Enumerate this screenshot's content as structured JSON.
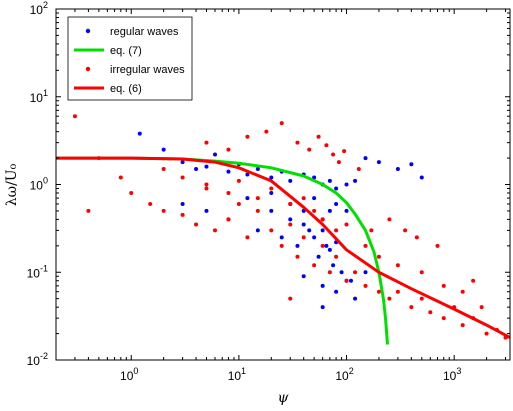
{
  "chart_data": {
    "type": "scatter",
    "title": "",
    "xlabel": "ψ",
    "ylabel": "λω/U₀",
    "xscale": "log",
    "yscale": "log",
    "xlim": [
      0.2,
      3300
    ],
    "ylim": [
      0.01,
      100
    ],
    "grid": false,
    "legend_position": "top-left",
    "x_ticks": [
      {
        "value": 1,
        "base": "10",
        "exp": "0"
      },
      {
        "value": 10,
        "base": "10",
        "exp": "1"
      },
      {
        "value": 100,
        "base": "10",
        "exp": "2"
      },
      {
        "value": 1000,
        "base": "10",
        "exp": "3"
      }
    ],
    "y_ticks": [
      {
        "value": 0.01,
        "base": "10",
        "exp": "-2"
      },
      {
        "value": 0.1,
        "base": "10",
        "exp": "-1"
      },
      {
        "value": 1,
        "base": "10",
        "exp": "0"
      },
      {
        "value": 10,
        "base": "10",
        "exp": "1"
      },
      {
        "value": 100,
        "base": "10",
        "exp": "2"
      }
    ],
    "series": [
      {
        "name": "regular waves",
        "kind": "points",
        "color": "#0000ff",
        "x": [
          1.2,
          2,
          3,
          4,
          5,
          6,
          8,
          10,
          12,
          15,
          20,
          25,
          30,
          40,
          50,
          60,
          70,
          80,
          100,
          120,
          150,
          200,
          300,
          400,
          500,
          3,
          5,
          8,
          12,
          20,
          30,
          40,
          50,
          60,
          70,
          80,
          100,
          15,
          25,
          35,
          45,
          55,
          65,
          75,
          90,
          110,
          20,
          30,
          40,
          50,
          60,
          70,
          80,
          40,
          60,
          80,
          100,
          120,
          150,
          60
        ],
        "y": [
          3.8,
          2.5,
          1.8,
          1.5,
          1.6,
          2.2,
          1.4,
          1.7,
          1.3,
          1.5,
          1.2,
          1.4,
          1.1,
          1.3,
          1.2,
          1.0,
          1.1,
          0.9,
          1.0,
          1.1,
          2.0,
          1.8,
          1.5,
          1.7,
          1.2,
          0.6,
          0.5,
          0.4,
          0.7,
          0.8,
          0.6,
          0.5,
          0.7,
          0.4,
          0.5,
          0.6,
          0.5,
          0.3,
          0.25,
          0.2,
          0.3,
          0.15,
          0.2,
          0.12,
          0.1,
          0.08,
          0.5,
          0.4,
          0.35,
          0.25,
          0.3,
          0.18,
          0.22,
          0.09,
          0.07,
          0.06,
          0.08,
          0.05,
          0.1,
          0.04
        ]
      },
      {
        "name": "eq. (7)",
        "kind": "line",
        "color": "#00e000",
        "x": [
          0.2,
          1,
          3,
          6,
          10,
          20,
          40,
          60,
          80,
          100,
          120,
          150,
          180,
          200,
          220,
          230,
          240
        ],
        "y": [
          2.0,
          2.0,
          1.95,
          1.85,
          1.75,
          1.55,
          1.25,
          1.0,
          0.8,
          0.62,
          0.46,
          0.3,
          0.17,
          0.1,
          0.05,
          0.03,
          0.015
        ]
      },
      {
        "name": "irregular waves",
        "kind": "points",
        "color": "#ff0000",
        "x": [
          0.3,
          0.4,
          0.5,
          0.8,
          1,
          1.5,
          2,
          3,
          4,
          5,
          6,
          8,
          10,
          12,
          15,
          20,
          25,
          30,
          35,
          40,
          50,
          60,
          70,
          80,
          100,
          120,
          150,
          200,
          250,
          300,
          400,
          500,
          600,
          800,
          1000,
          1200,
          1500,
          2000,
          2500,
          3000,
          2,
          3,
          5,
          8,
          10,
          15,
          20,
          30,
          40,
          50,
          60,
          80,
          100,
          150,
          200,
          300,
          500,
          800,
          1200,
          1800,
          5,
          8,
          12,
          18,
          25,
          35,
          45,
          55,
          65,
          75,
          85,
          95,
          130,
          170,
          250,
          350,
          450,
          700,
          1500,
          30
        ],
        "y": [
          6.0,
          0.5,
          2.0,
          1.2,
          0.8,
          0.6,
          0.5,
          0.45,
          0.35,
          1.0,
          0.3,
          0.4,
          0.6,
          0.25,
          0.5,
          0.3,
          0.2,
          0.35,
          0.15,
          0.25,
          0.12,
          0.2,
          0.1,
          0.15,
          0.08,
          0.1,
          0.07,
          0.06,
          0.05,
          0.06,
          0.04,
          0.05,
          0.035,
          0.03,
          0.04,
          0.025,
          0.03,
          0.02,
          0.022,
          0.018,
          1.5,
          1.2,
          0.9,
          0.8,
          1.1,
          0.7,
          0.9,
          0.6,
          0.7,
          0.5,
          0.4,
          0.3,
          0.35,
          0.2,
          0.15,
          0.12,
          0.1,
          0.07,
          0.06,
          0.04,
          3.0,
          2.5,
          3.5,
          4.0,
          5.0,
          3.0,
          2.5,
          3.5,
          2.8,
          2.2,
          1.8,
          2.4,
          1.5,
          0.3,
          0.4,
          0.3,
          0.25,
          0.2,
          0.08,
          0.05
        ]
      },
      {
        "name": "eq. (6)",
        "kind": "line",
        "color": "#ff0000",
        "x": [
          0.2,
          1,
          3,
          6,
          10,
          20,
          40,
          60,
          100,
          200,
          400,
          1000,
          2000,
          3300
        ],
        "y": [
          2.0,
          2.0,
          1.95,
          1.8,
          1.55,
          1.1,
          0.55,
          0.35,
          0.18,
          0.1,
          0.065,
          0.038,
          0.025,
          0.018
        ]
      }
    ]
  }
}
